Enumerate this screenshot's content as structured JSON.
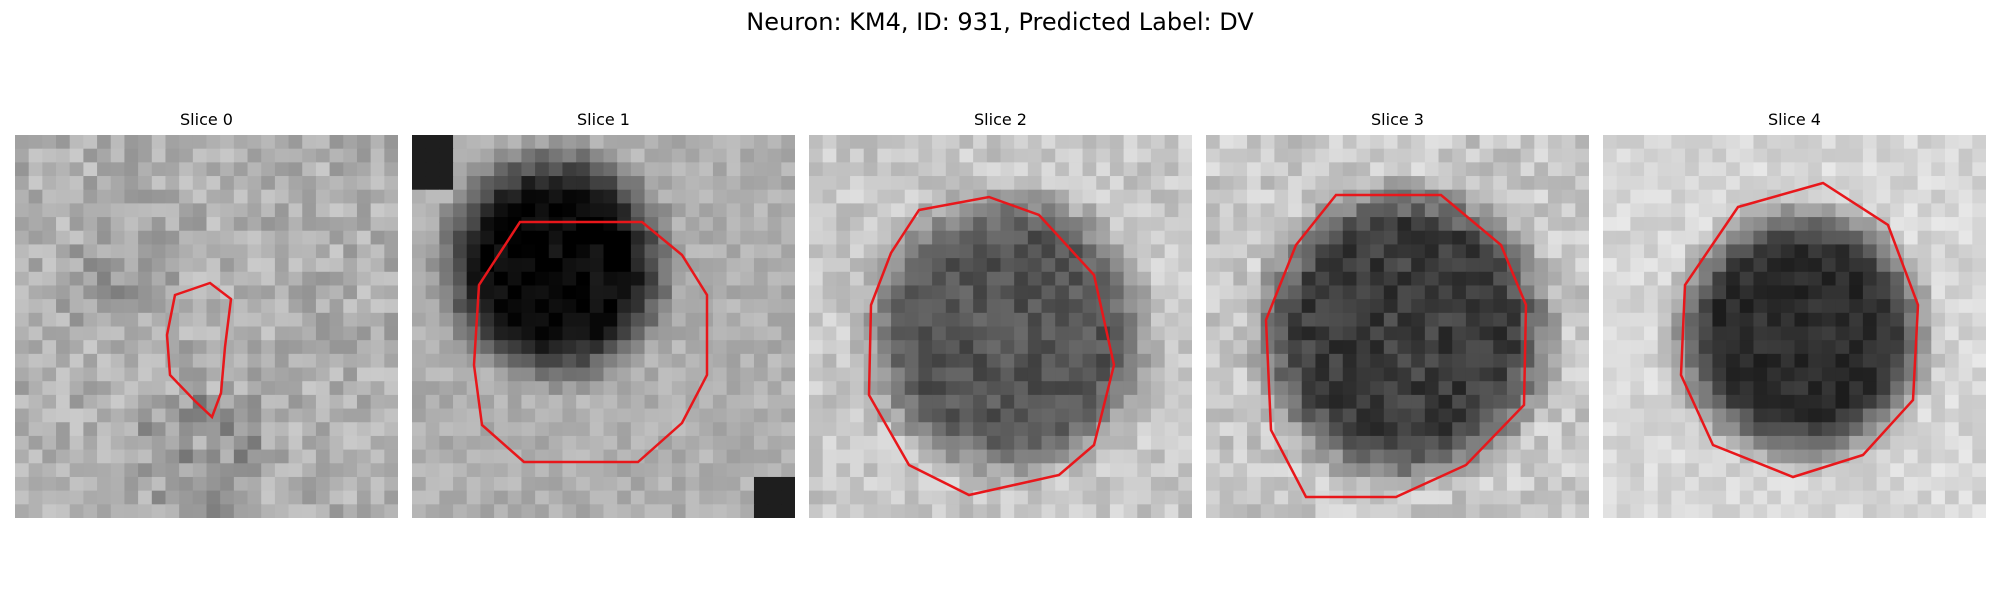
{
  "figure": {
    "title": "Neuron: KM4, ID: 931, Predicted Label: DV"
  },
  "colors": {
    "contour": "#e8171b",
    "background": "#ffffff"
  },
  "panels": [
    {
      "label": "Slice 0",
      "texture": "light-noise"
    },
    {
      "label": "Slice 1",
      "texture": "dark-core"
    },
    {
      "label": "Slice 2",
      "texture": "medium-core"
    },
    {
      "label": "Slice 3",
      "texture": "dark-textured-core"
    },
    {
      "label": "Slice 4",
      "texture": "soft-dark-core"
    }
  ]
}
